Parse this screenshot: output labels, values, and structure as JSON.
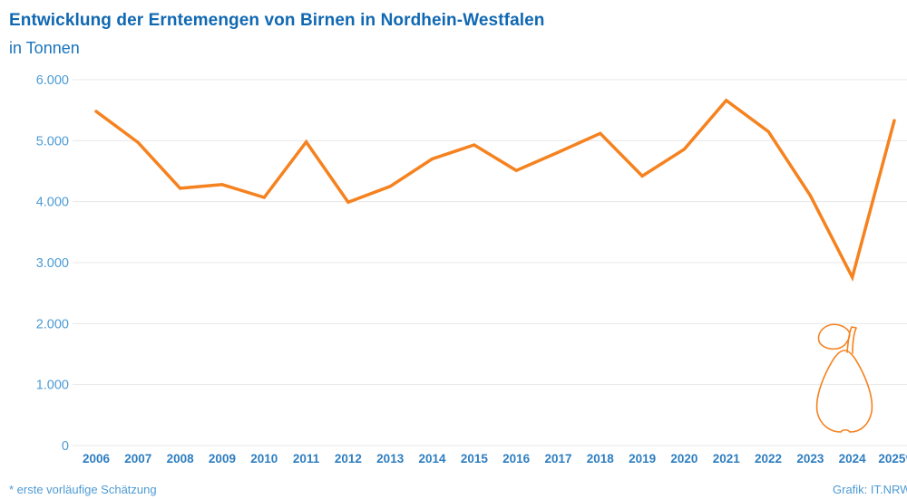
{
  "chart_data": {
    "type": "line",
    "title": "Entwicklung der Erntemengen von Birnen in Nordhein-Westfalen",
    "subtitle": "in Tonnen",
    "categories": [
      "2006",
      "2007",
      "2008",
      "2009",
      "2010",
      "2011",
      "2012",
      "2013",
      "2014",
      "2015",
      "2016",
      "2017",
      "2018",
      "2019",
      "2020",
      "2021",
      "2022",
      "2023",
      "2024",
      "2025*"
    ],
    "series": [
      {
        "name": "Erntemenge Birnen in Tonnen",
        "values": [
          5480,
          4970,
          4220,
          4280,
          4070,
          4980,
          3990,
          4250,
          4700,
          4930,
          4510,
          4810,
          5120,
          4420,
          4860,
          5660,
          5150,
          4100,
          2760,
          5330
        ]
      }
    ],
    "ylim": [
      0,
      6000
    ],
    "y_tick_step": 1000,
    "y_ticks": [
      {
        "value": 0,
        "label": "0"
      },
      {
        "value": 1000,
        "label": "1.000"
      },
      {
        "value": 2000,
        "label": "2.000"
      },
      {
        "value": 3000,
        "label": "3.000"
      },
      {
        "value": 4000,
        "label": "4.000"
      },
      {
        "value": 5000,
        "label": "5.000"
      },
      {
        "value": 6000,
        "label": "6.000"
      }
    ],
    "xlabel": "",
    "ylabel": "",
    "grid": true,
    "legend_position": "none"
  },
  "footer": {
    "note": "* erste vorläufige Schätzung",
    "credit": "Grafik: IT.NRW"
  },
  "icons": {
    "decoration": "pear-outline-icon"
  },
  "colors": {
    "accent_orange": "#F5821F",
    "title_blue": "#1068B2",
    "subtitle_blue": "#1B74BC",
    "y_label_blue": "#4D9BD4",
    "year_label_blue": "#2E7EC0",
    "gridline_gray": "#E7E7E7",
    "footnote_blue": "#4D9BD4",
    "background": "#FFFFFF"
  }
}
